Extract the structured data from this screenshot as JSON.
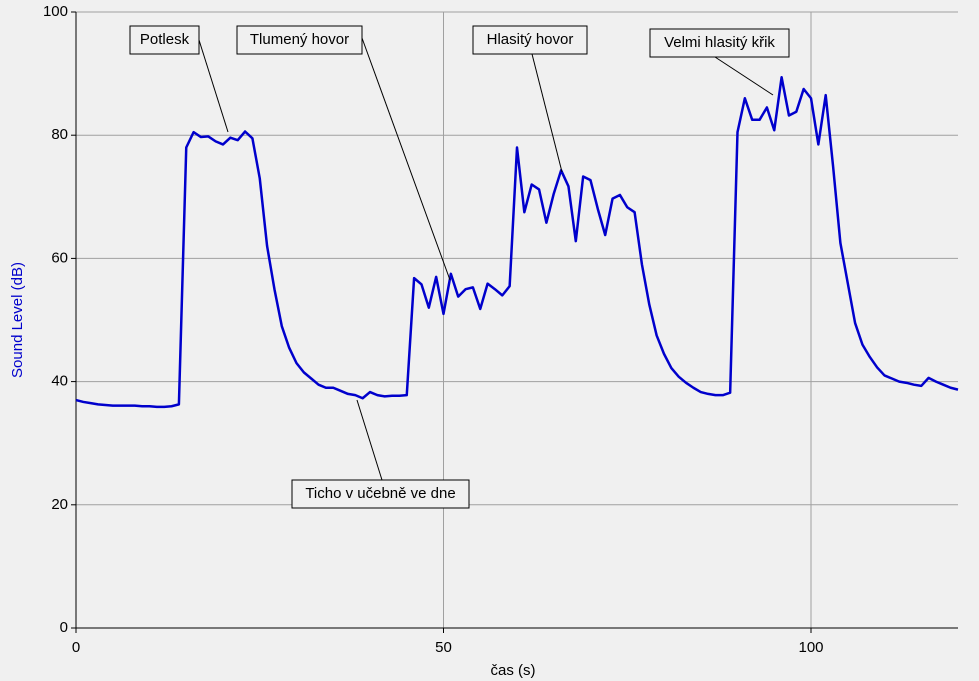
{
  "chart_data": {
    "type": "line",
    "x_label": "čas (s)",
    "y_label": "Sound Level (dB)",
    "x": [
      0,
      1,
      2,
      3,
      4,
      5,
      6,
      7,
      8,
      9,
      10,
      11,
      12,
      13,
      14,
      15,
      16,
      17,
      18,
      19,
      20,
      21,
      22,
      23,
      24,
      25,
      26,
      27,
      28,
      29,
      30,
      31,
      32,
      33,
      34,
      35,
      36,
      37,
      38,
      39,
      40,
      41,
      42,
      43,
      44,
      45,
      46,
      47,
      48,
      49,
      50,
      51,
      52,
      53,
      54,
      55,
      56,
      57,
      58,
      59,
      60,
      61,
      62,
      63,
      64,
      65,
      66,
      67,
      68,
      69,
      70,
      71,
      72,
      73,
      74,
      75,
      76,
      77,
      78,
      79,
      80,
      81,
      82,
      83,
      84,
      85,
      86,
      87,
      88,
      89,
      90,
      91,
      92,
      93,
      94,
      95,
      96,
      97,
      98,
      99,
      100,
      101,
      102,
      103,
      104,
      105,
      106,
      107,
      108,
      109,
      110,
      111,
      112,
      113,
      114,
      115,
      116,
      117,
      118,
      119,
      120
    ],
    "series": [
      {
        "name": "Sound Level",
        "color": "#0000cc",
        "values": [
          37,
          36.7,
          36.5,
          36.3,
          36.2,
          36.1,
          36.1,
          36.1,
          36.1,
          36,
          36,
          35.9,
          35.9,
          36,
          36.3,
          78,
          80.5,
          79.7,
          79.8,
          79,
          78.5,
          79.6,
          79.2,
          80.6,
          79.5,
          73,
          62,
          55,
          49,
          45.5,
          43,
          41.5,
          40.5,
          39.5,
          39,
          39,
          38.5,
          38,
          37.8,
          37.3,
          38.3,
          37.8,
          37.6,
          37.7,
          37.7,
          37.8,
          56.8,
          55.8,
          52,
          57,
          51,
          57.5,
          53.8,
          55,
          55.3,
          51.8,
          55.9,
          55,
          54,
          55.5,
          78,
          67.5,
          72,
          71.2,
          65.8,
          70.5,
          74.3,
          71.7,
          62.8,
          73.3,
          72.7,
          68,
          63.8,
          69.7,
          70.3,
          68.3,
          67.5,
          59,
          52.5,
          47.5,
          44.5,
          42.2,
          40.8,
          39.8,
          39,
          38.3,
          38,
          37.8,
          37.8,
          38.2,
          80.5,
          86,
          82.5,
          82.5,
          84.5,
          80.8,
          89.4,
          83.2,
          83.8,
          87.5,
          86,
          78.5,
          86.5,
          75,
          62.5,
          56,
          49.5,
          46,
          44,
          42.3,
          41,
          40.5,
          40,
          39.8,
          39.5,
          39.3,
          40.6,
          40,
          39.5,
          39,
          38.7
        ]
      }
    ],
    "xlim": [
      0,
      120
    ],
    "ylim": [
      0,
      100
    ],
    "xticks": [
      0,
      50,
      100
    ],
    "yticks": [
      0,
      20,
      40,
      60,
      80,
      100
    ],
    "grid": true,
    "annotations": [
      "Potlesk",
      "Tlumený hovor",
      "Hlasitý hovor",
      "Velmi hlasitý křik",
      "Ticho v učebně ve dne"
    ]
  }
}
